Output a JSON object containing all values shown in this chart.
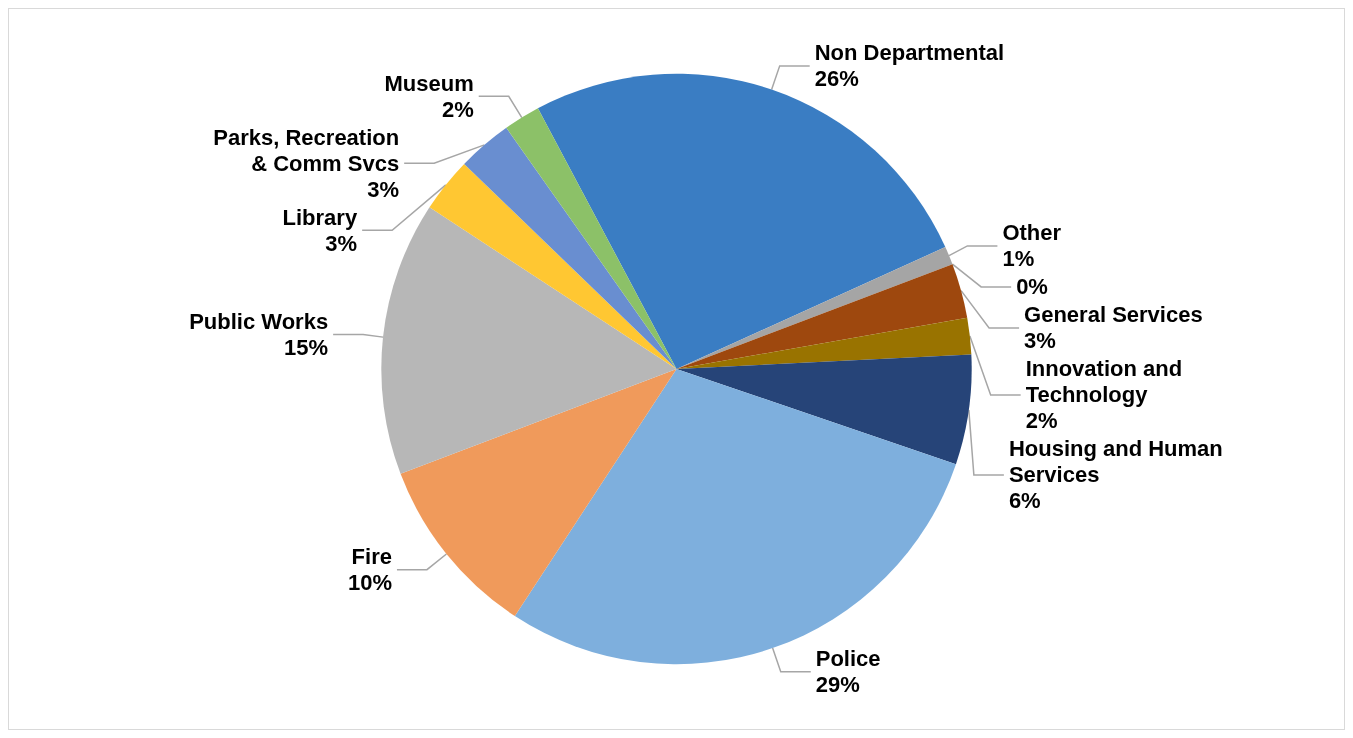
{
  "chart_data": {
    "type": "pie",
    "categories": [
      "Non Departmental",
      "Other",
      null,
      "General Services",
      "Innovation and Technology",
      "Housing and Human Services",
      "Police",
      "Fire",
      "Public Works",
      "Library",
      "Parks, Recreation & Comm Svcs",
      "Museum"
    ],
    "values": [
      26,
      1,
      0,
      3,
      2,
      6,
      29,
      10,
      15,
      3,
      3,
      2
    ],
    "value_labels": [
      "26%",
      "1%",
      "0%",
      "3%",
      "2%",
      "6%",
      "29%",
      "10%",
      "15%",
      "3%",
      "3%",
      "2%"
    ],
    "colors": [
      "#3a7dc3",
      "#a5a5a5",
      "#5b9bd5",
      "#9e480e",
      "#997300",
      "#264478",
      "#7eafdd",
      "#f09a5b",
      "#b7b7b7",
      "#ffc732",
      "#698ed0",
      "#8cc168"
    ]
  }
}
